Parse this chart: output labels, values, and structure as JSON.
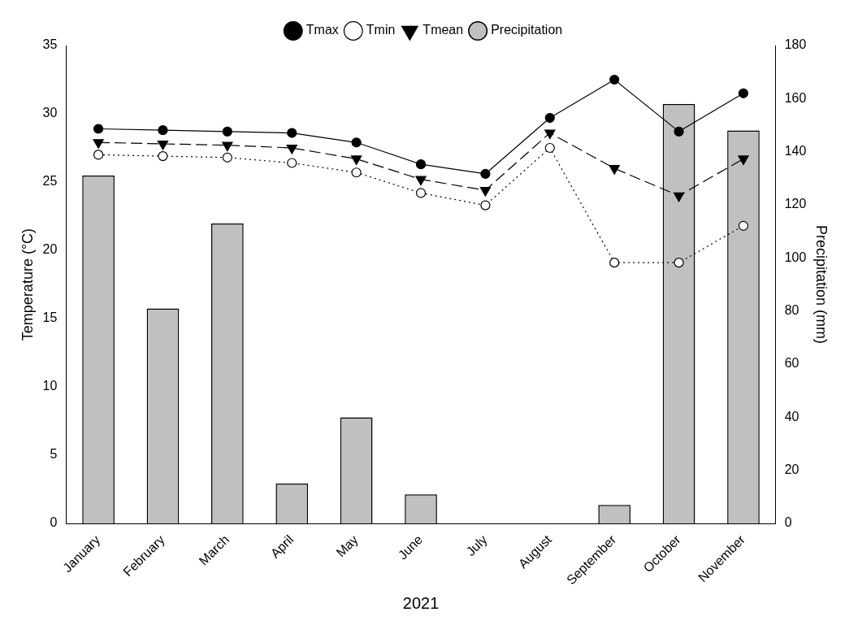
{
  "chart_data": {
    "type": "line",
    "xlabel": "2021",
    "ylabel": "Temperature (°C)",
    "y2label": "Precipitation (mm)",
    "categories": [
      "January",
      "February",
      "March",
      "April",
      "May",
      "June",
      "July",
      "August",
      "September",
      "October",
      "November"
    ],
    "series": [
      {
        "name": "Tmax",
        "color": "#000000",
        "marker": "circle",
        "line_style": "solid",
        "values": [
          28.9,
          28.8,
          28.7,
          28.6,
          27.9,
          26.3,
          25.6,
          29.7,
          32.5,
          28.7,
          31.5
        ]
      },
      {
        "name": "Tmin",
        "color": "#000000",
        "marker": "circle",
        "line_style": "dotted",
        "values": [
          27.0,
          26.9,
          26.8,
          26.4,
          25.7,
          24.2,
          23.3,
          27.5,
          19.1,
          19.1,
          21.8
        ]
      },
      {
        "name": "Precipitation",
        "type": "bar",
        "axis": "y2",
        "color": "#c0c0c0",
        "values": [
          131,
          81,
          113,
          15,
          40,
          11,
          0,
          0,
          7,
          158,
          148
        ]
      },
      {
        "name": "Tmean",
        "color": "#000000",
        "marker": "triangle",
        "line_style": "dashed",
        "values": [
          27.9,
          27.8,
          27.7,
          27.5,
          26.7,
          25.2,
          24.4,
          28.6,
          26.0,
          24.0,
          26.7
        ]
      }
    ],
    "ylim": [
      0,
      35
    ],
    "yticks": [
      0,
      5,
      10,
      15,
      20,
      25,
      30,
      35
    ],
    "y2lim": [
      0,
      180
    ],
    "y2ticks": [
      0,
      20,
      40,
      60,
      80,
      100,
      120,
      140,
      160,
      180
    ],
    "grid": false,
    "legend": "top"
  }
}
